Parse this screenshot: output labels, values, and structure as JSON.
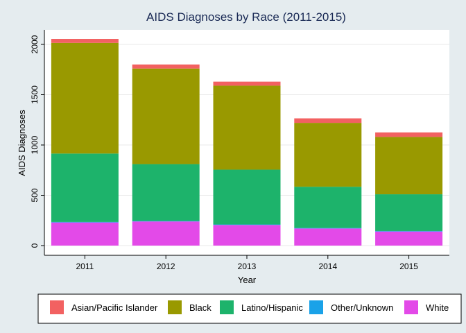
{
  "chart_data": {
    "type": "bar",
    "stacked": true,
    "title": "AIDS Diagnoses by Race (2011-2015)",
    "xlabel": "Year",
    "ylabel": "AIDS Diagnoses",
    "categories": [
      "2011",
      "2012",
      "2013",
      "2014",
      "2015"
    ],
    "ylim": [
      0,
      2100
    ],
    "yticks": [
      0,
      500,
      1000,
      1500,
      2000
    ],
    "grid": true,
    "legend_position": "bottom",
    "series": [
      {
        "name": "White",
        "color": "#e34ae8",
        "values": [
          230,
          240,
          205,
          170,
          140
        ]
      },
      {
        "name": "Other/Unknown",
        "color": "#1aa2e8",
        "values": [
          5,
          5,
          5,
          5,
          5
        ]
      },
      {
        "name": "Latino/Hispanic",
        "color": "#1db36b",
        "values": [
          680,
          565,
          545,
          410,
          365
        ]
      },
      {
        "name": "Black",
        "color": "#999900",
        "values": [
          1100,
          950,
          835,
          635,
          570
        ]
      },
      {
        "name": "Asian/Pacific Islander",
        "color": "#f26161",
        "values": [
          40,
          40,
          40,
          45,
          45
        ]
      }
    ],
    "legend_order": [
      "Asian/Pacific Islander",
      "Black",
      "Latino/Hispanic",
      "Other/Unknown",
      "White"
    ]
  }
}
